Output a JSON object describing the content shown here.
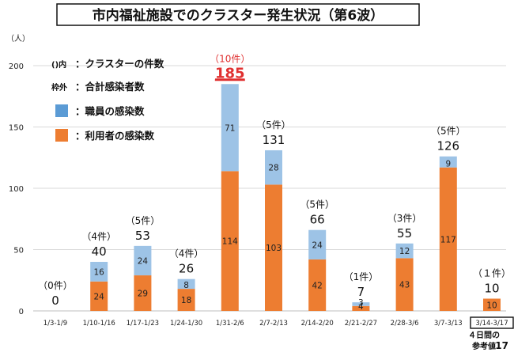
{
  "page_number": "17",
  "chart_data": {
    "type": "bar",
    "title": "市内福祉施設でのクラスター発生状況（第6波）",
    "ylabel": "（人）",
    "ylim": [
      0,
      200
    ],
    "yticks": [
      "0",
      "50",
      "100",
      "150",
      "200"
    ],
    "categories": [
      "1/3-1/9",
      "1/10-1/16",
      "1/17-1/23",
      "1/24-1/30",
      "1/31-2/6",
      "2/7-2/13",
      "2/14-2/20",
      "2/21-2/27",
      "2/28-3/6",
      "3/7-3/13",
      "3/14-3/17"
    ],
    "series": [
      {
        "name": "利用者の感染数",
        "color": "#ed7d31",
        "values": [
          0,
          24,
          29,
          18,
          114,
          103,
          42,
          4,
          43,
          117,
          10
        ],
        "labels": [
          "",
          "24",
          "29",
          "18",
          "114",
          "103",
          "42",
          "4",
          "43",
          "117",
          "10"
        ]
      },
      {
        "name": "職員の感染数",
        "color": "#9dc3e6",
        "values": [
          0,
          16,
          24,
          8,
          71,
          28,
          24,
          3,
          12,
          9,
          0
        ],
        "labels": [
          "",
          "16",
          "24",
          "8",
          "71",
          "28",
          "24",
          "3",
          "12",
          "9",
          ""
        ]
      }
    ],
    "totals": [
      "0",
      "40",
      "53",
      "26",
      "185",
      "131",
      "66",
      "7",
      "55",
      "126",
      "10"
    ],
    "cluster_counts": [
      "（0件）",
      "（4件）",
      "（5件）",
      "（4件）",
      "（10件）",
      "（5件）",
      "（5件）",
      "（1件）",
      "（3件）",
      "（5件）",
      "（１件）"
    ],
    "highlight_index": 4,
    "boxed_category_index": 10,
    "boxed_category_note": [
      "４日間の",
      "参考値"
    ],
    "legend": {
      "clusters_prefix": "()内",
      "clusters_label": "：クラスターの件数",
      "total_prefix": "枠外",
      "total_label": "：合計感染者数",
      "staff_label": "：職員の感染数",
      "user_label": "：利用者の感染数"
    }
  }
}
